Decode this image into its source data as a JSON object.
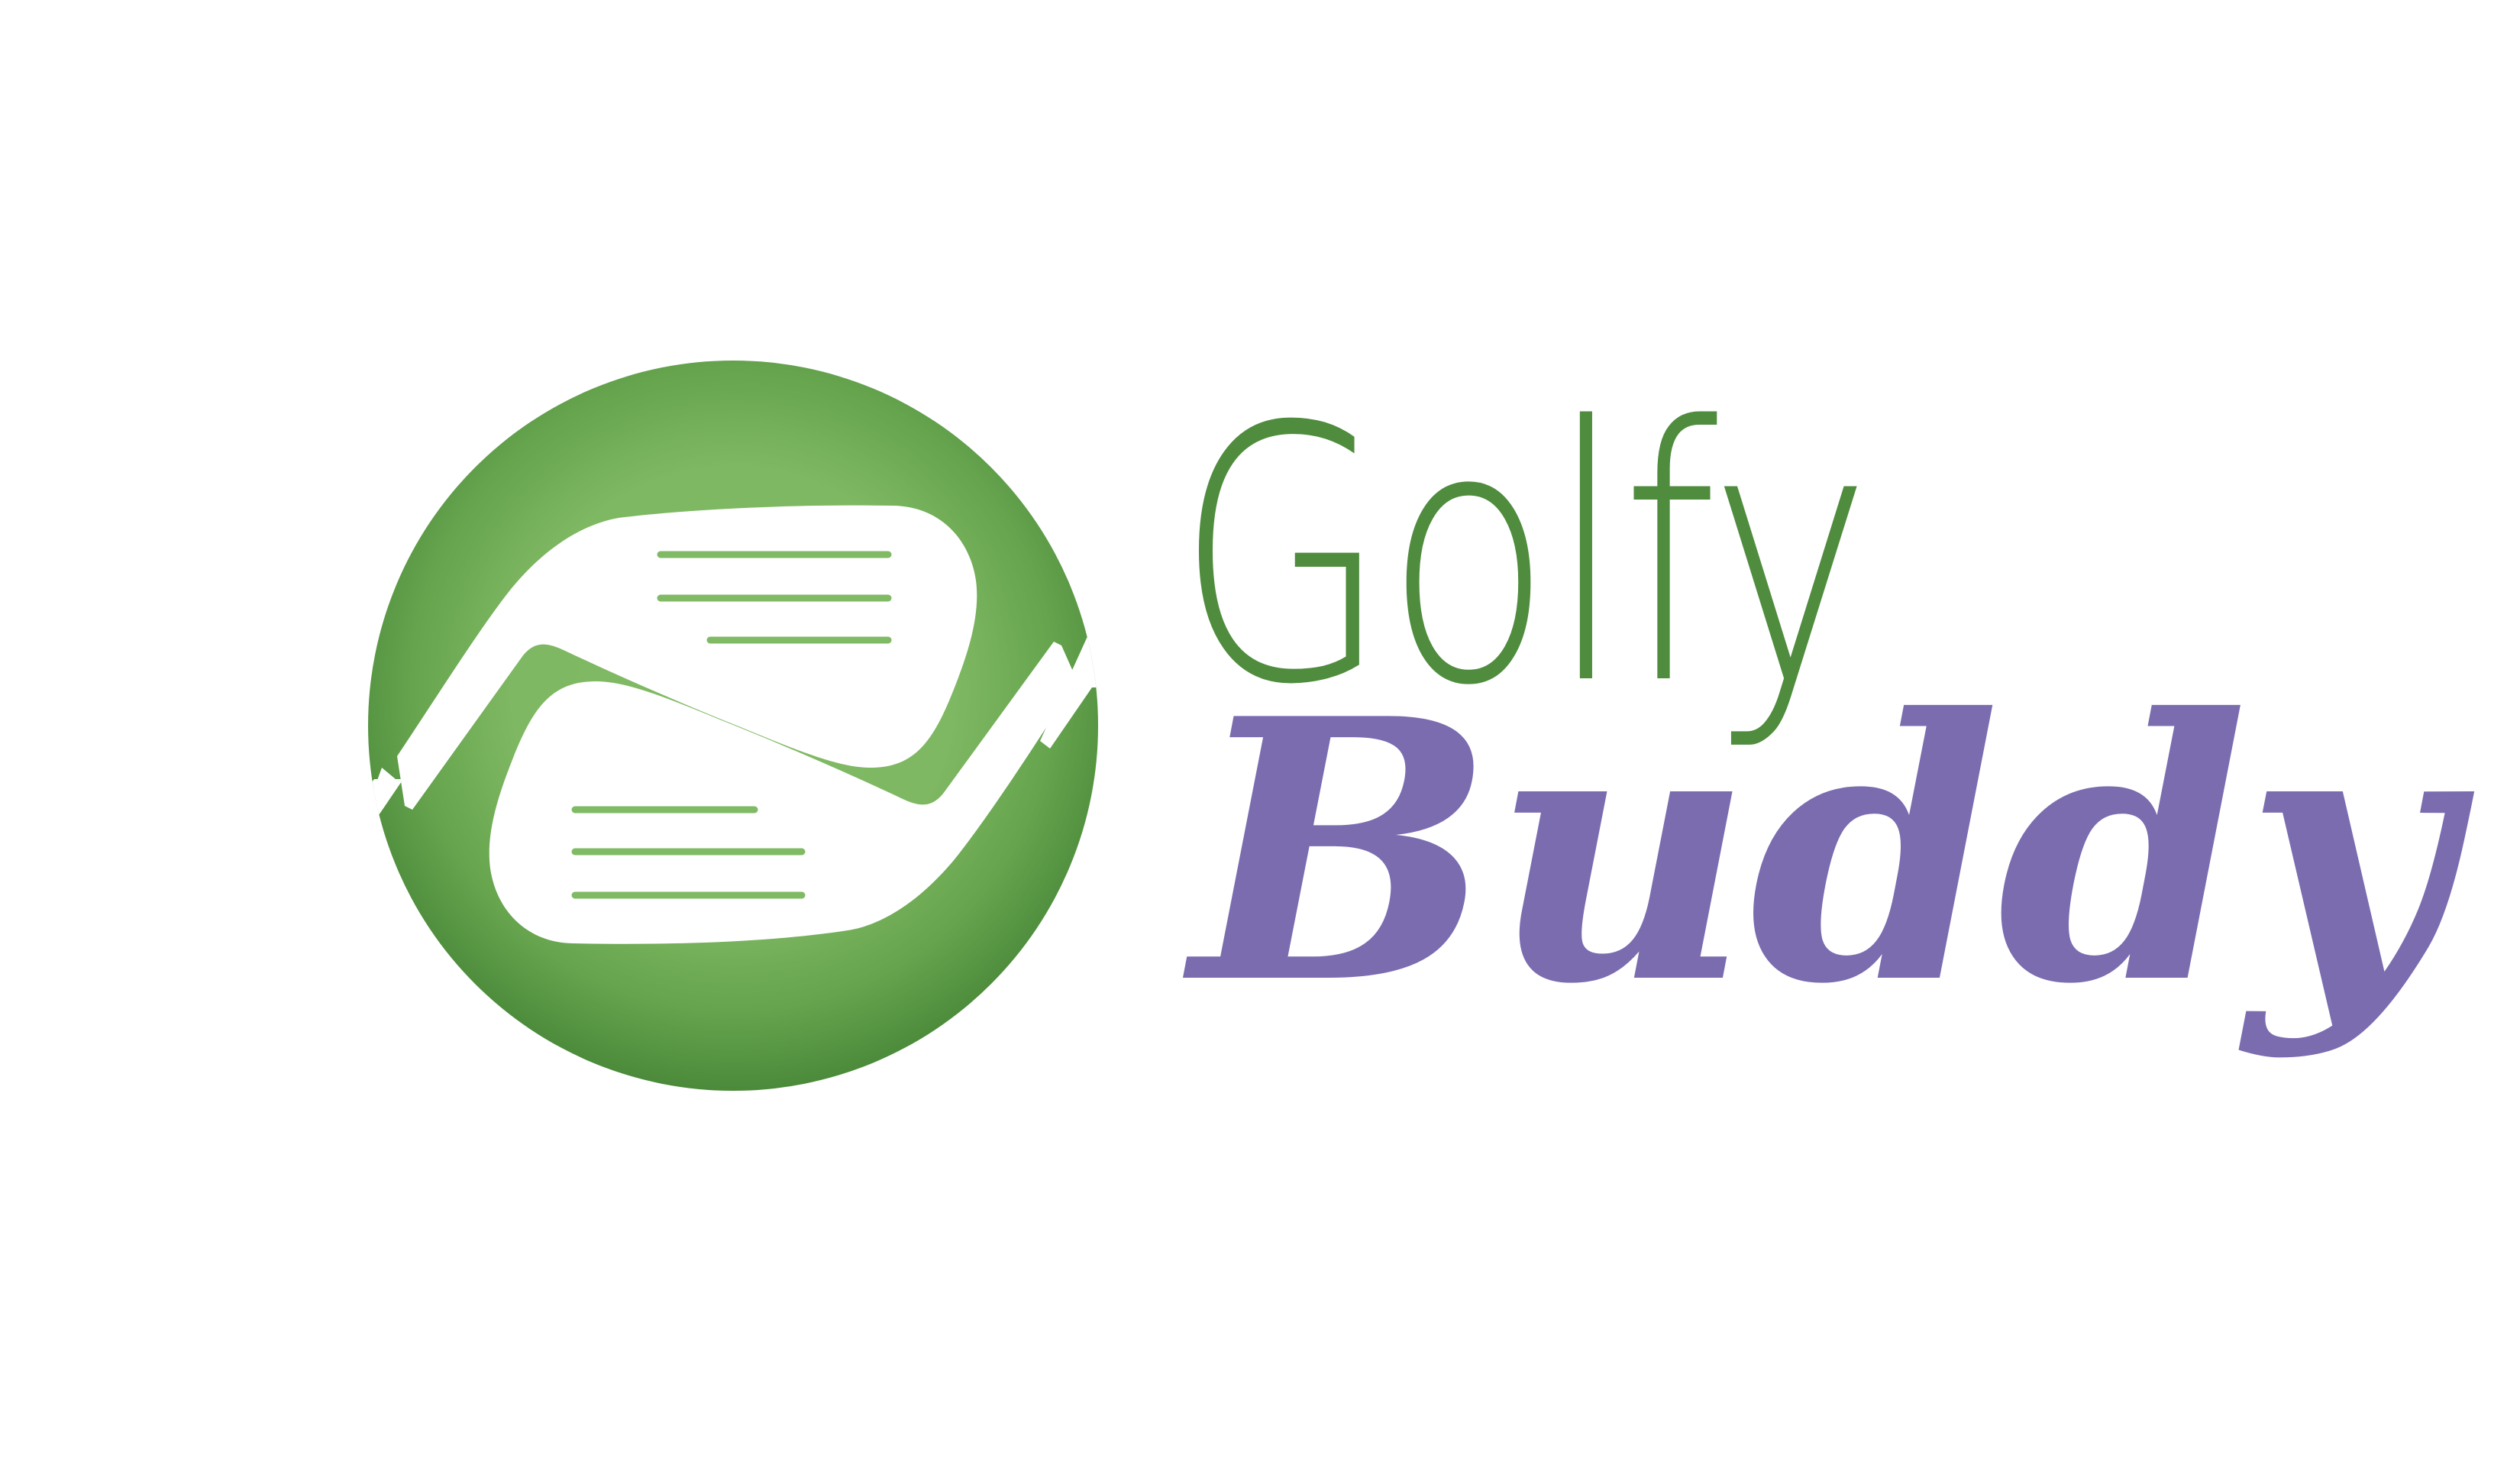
{
  "brand": {
    "word_1": "Golfy",
    "word_2": "Buddy"
  },
  "emblem": {
    "icon_name": "golf-club-heads-icon"
  },
  "colors": {
    "green_dark": "#4f8c3e",
    "green_light": "#80ba64",
    "purple": "#7b6cb0",
    "background": "#ffffff"
  }
}
